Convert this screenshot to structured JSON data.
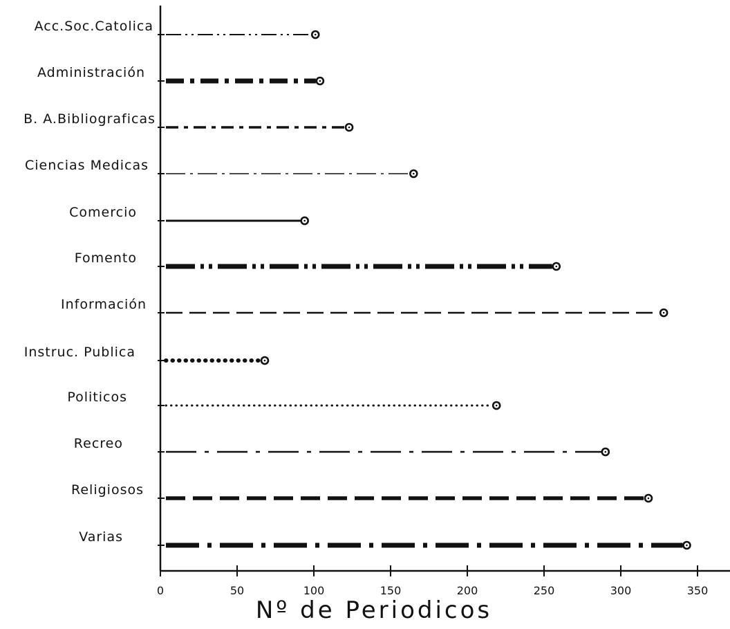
{
  "chart_data": {
    "type": "bar",
    "orientation": "horizontal",
    "mark": "lollipop",
    "categories": [
      "Acc.Soc.Catolica",
      "Administración",
      "B. A.Bibliograficas",
      "Ciencias Medicas",
      "Comercio",
      "Fomento",
      "Información",
      "Instruc. Publica",
      "Politicos",
      "Recreo",
      "Religiosos",
      "Varias"
    ],
    "values": [
      101,
      104,
      123,
      165,
      94,
      258,
      328,
      68,
      219,
      290,
      318,
      343
    ],
    "line_styles": [
      "dash-dot-dot-thin",
      "dash-dot-thick",
      "dash-dot-medium",
      "dash-dot-thin",
      "solid",
      "dash-dot-dot-thick",
      "dashed",
      "dotted-heavy",
      "dotted",
      "dash-dot",
      "dashed-thick",
      "dash-dot-heavy"
    ],
    "xlabel": "Nº de Periodicos",
    "ylabel": "",
    "title": "",
    "xlim": [
      0,
      370
    ],
    "xticks": [
      0,
      50,
      100,
      150,
      200,
      250,
      300,
      350
    ],
    "grid": false,
    "legend": "none",
    "colors": {
      "ink": "#111111",
      "background": "#ffffff"
    }
  }
}
